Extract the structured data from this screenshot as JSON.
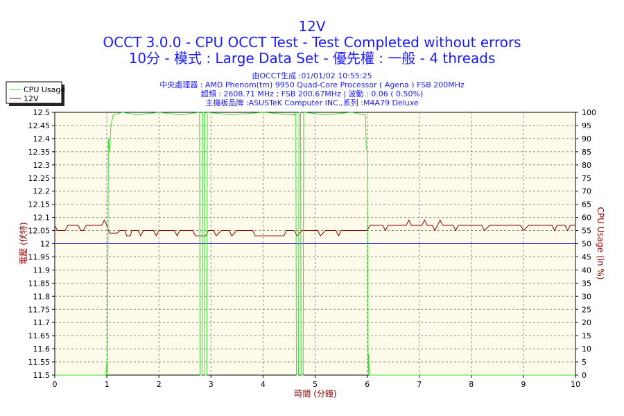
{
  "header": {
    "title": "12V",
    "line1": "OCCT 3.0.0 - CPU OCCT Test - Test Completed without errors",
    "line2": "10分 - 模式 : Large Data Set - 優先權 : 一般 - 4 threads",
    "info1": "由OCCT生成 :01/01/02 10:55:25",
    "info2": "中央處理器 : AMD Phenom(tm) 9950 Quad-Core Processor ( Agena ) FSB 200MHz",
    "info3": "超頻 : 2608.71 MHz ; FSB 200.67MHz | 波動 : 0.06 ( 0.50%)",
    "info4": "主機板品牌 :ASUSTeK Computer INC.,系列 :M4A79 Deluxe"
  },
  "colors": {
    "cpu_usage": "#33dd33",
    "voltage": "#8b0000",
    "reference": "#0000cc",
    "plot_bg": "#fffbeb",
    "title": "#1a1aff",
    "axis_label": "#8b0000"
  },
  "chart_data": {
    "type": "line",
    "xlabel": "時間 (分鐘)",
    "ylabel_left": "電壓 (伏特)",
    "ylabel_right": "CPU Usage (in %)",
    "xlim": [
      0,
      10
    ],
    "ylim_left": [
      11.5,
      12.5
    ],
    "ylim_right": [
      0,
      100
    ],
    "grid": true,
    "legend_position": "top-left",
    "x_ticks": [
      "0",
      "1",
      "2",
      "3",
      "4",
      "5",
      "6",
      "7",
      "8",
      "9",
      "10"
    ],
    "y_left_ticks": [
      "12.5",
      "12.45",
      "12.4",
      "12.35",
      "12.3",
      "12.25",
      "12.2",
      "12.15",
      "12.1",
      "12.05",
      "12",
      "11.95",
      "11.9",
      "11.85",
      "11.8",
      "11.75",
      "11.7",
      "11.65",
      "11.6",
      "11.55",
      "11.5"
    ],
    "y_right_ticks": [
      "100",
      "95",
      "90",
      "85",
      "80",
      "75",
      "70",
      "65",
      "60",
      "55",
      "50",
      "45",
      "40",
      "35",
      "30",
      "25",
      "20",
      "15",
      "10",
      "5",
      "0"
    ],
    "reference_line": 12.0,
    "series": [
      {
        "name": "CPU Usage",
        "axis": "right",
        "points": [
          [
            0,
            0
          ],
          [
            0.98,
            0
          ],
          [
            1.0,
            5
          ],
          [
            1.01,
            0
          ],
          [
            1.03,
            90
          ],
          [
            1.05,
            85
          ],
          [
            1.08,
            95
          ],
          [
            1.12,
            99
          ],
          [
            1.3,
            100
          ],
          [
            1.6,
            99
          ],
          [
            2.0,
            100
          ],
          [
            2.4,
            99
          ],
          [
            2.78,
            100
          ],
          [
            2.79,
            0
          ],
          [
            2.83,
            0
          ],
          [
            2.84,
            100
          ],
          [
            2.87,
            100
          ],
          [
            2.88,
            0
          ],
          [
            2.92,
            0
          ],
          [
            2.93,
            100
          ],
          [
            3.4,
            99
          ],
          [
            4.0,
            100
          ],
          [
            4.6,
            99
          ],
          [
            4.63,
            100
          ],
          [
            4.64,
            0
          ],
          [
            4.68,
            0
          ],
          [
            4.69,
            100
          ],
          [
            4.72,
            100
          ],
          [
            4.73,
            0
          ],
          [
            4.77,
            0
          ],
          [
            4.78,
            100
          ],
          [
            5.2,
            99
          ],
          [
            5.7,
            100
          ],
          [
            5.97,
            99
          ],
          [
            5.98,
            87
          ],
          [
            6.0,
            85
          ],
          [
            6.02,
            0
          ],
          [
            6.03,
            8
          ],
          [
            6.04,
            0
          ],
          [
            10,
            0
          ]
        ]
      },
      {
        "name": "12V",
        "axis": "left",
        "points": [
          [
            0,
            12.07
          ],
          [
            0.05,
            12.05
          ],
          [
            0.2,
            12.05
          ],
          [
            0.25,
            12.07
          ],
          [
            0.45,
            12.07
          ],
          [
            0.5,
            12.05
          ],
          [
            0.55,
            12.05
          ],
          [
            0.6,
            12.07
          ],
          [
            0.9,
            12.07
          ],
          [
            0.95,
            12.09
          ],
          [
            1.0,
            12.07
          ],
          [
            1.05,
            12.04
          ],
          [
            1.2,
            12.04
          ],
          [
            1.25,
            12.05
          ],
          [
            1.35,
            12.05
          ],
          [
            1.38,
            12.03
          ],
          [
            1.45,
            12.03
          ],
          [
            1.48,
            12.05
          ],
          [
            1.6,
            12.05
          ],
          [
            1.65,
            12.03
          ],
          [
            1.7,
            12.05
          ],
          [
            1.9,
            12.05
          ],
          [
            1.95,
            12.03
          ],
          [
            2.0,
            12.05
          ],
          [
            2.3,
            12.05
          ],
          [
            2.35,
            12.03
          ],
          [
            2.4,
            12.05
          ],
          [
            2.65,
            12.05
          ],
          [
            2.7,
            12.03
          ],
          [
            2.9,
            12.03
          ],
          [
            2.95,
            12.05
          ],
          [
            3.05,
            12.05
          ],
          [
            3.1,
            12.03
          ],
          [
            3.2,
            12.05
          ],
          [
            3.35,
            12.05
          ],
          [
            3.4,
            12.03
          ],
          [
            3.5,
            12.05
          ],
          [
            3.8,
            12.05
          ],
          [
            3.85,
            12.03
          ],
          [
            4.4,
            12.03
          ],
          [
            4.45,
            12.05
          ],
          [
            4.6,
            12.05
          ],
          [
            4.65,
            12.03
          ],
          [
            4.75,
            12.05
          ],
          [
            5.05,
            12.05
          ],
          [
            5.1,
            12.03
          ],
          [
            5.2,
            12.05
          ],
          [
            5.4,
            12.05
          ],
          [
            5.45,
            12.03
          ],
          [
            5.5,
            12.05
          ],
          [
            6.0,
            12.05
          ],
          [
            6.05,
            12.07
          ],
          [
            6.3,
            12.07
          ],
          [
            6.35,
            12.05
          ],
          [
            6.4,
            12.07
          ],
          [
            6.75,
            12.07
          ],
          [
            6.8,
            12.09
          ],
          [
            6.85,
            12.07
          ],
          [
            7.05,
            12.07
          ],
          [
            7.1,
            12.09
          ],
          [
            7.15,
            12.07
          ],
          [
            7.25,
            12.07
          ],
          [
            7.3,
            12.05
          ],
          [
            7.35,
            12.07
          ],
          [
            7.4,
            12.09
          ],
          [
            7.45,
            12.07
          ],
          [
            7.65,
            12.07
          ],
          [
            7.7,
            12.05
          ],
          [
            7.75,
            12.07
          ],
          [
            8.2,
            12.07
          ],
          [
            8.25,
            12.05
          ],
          [
            8.35,
            12.07
          ],
          [
            8.95,
            12.07
          ],
          [
            9.0,
            12.05
          ],
          [
            9.1,
            12.07
          ],
          [
            9.55,
            12.07
          ],
          [
            9.6,
            12.05
          ],
          [
            9.65,
            12.07
          ],
          [
            9.8,
            12.07
          ],
          [
            9.85,
            12.05
          ],
          [
            9.9,
            12.07
          ],
          [
            10,
            12.07
          ]
        ]
      }
    ]
  }
}
